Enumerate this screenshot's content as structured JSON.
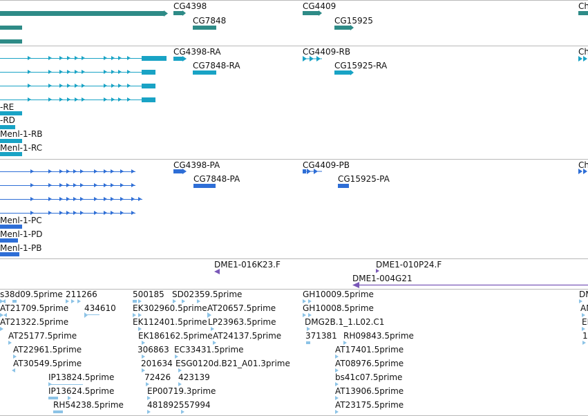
{
  "colors": {
    "gene": "#2e8b87",
    "transcript_ra": "#19a3c5",
    "transcript_pa": "#2e6ed6",
    "bac": "#7a58b8",
    "est": "#8cc3e6",
    "separator": "#b8b8b8"
  },
  "tracks": {
    "genes": [
      {
        "label": "CG4398"
      },
      {
        "label": "CG4409"
      },
      {
        "label": "CG7848"
      },
      {
        "label": "CG15925"
      },
      {
        "label": "Ch"
      }
    ],
    "transcripts": [
      {
        "label": "CG4398-RA"
      },
      {
        "label": "CG4409-RB"
      },
      {
        "label": "CG7848-RA"
      },
      {
        "label": "CG15925-RA"
      },
      {
        "label": "-RE"
      },
      {
        "label": "-RD"
      },
      {
        "label": "Menl-1-RB"
      },
      {
        "label": "Menl-1-RC"
      },
      {
        "label": "Ch"
      }
    ],
    "proteins": [
      {
        "label": "CG4398-PA"
      },
      {
        "label": "CG4409-PB"
      },
      {
        "label": "CG7848-PA"
      },
      {
        "label": "CG15925-PA"
      },
      {
        "label": "Menl-1-PC"
      },
      {
        "label": "Menl-1-PD"
      },
      {
        "label": "Menl-1-PB"
      },
      {
        "label": "Ch"
      }
    ],
    "bacs": [
      {
        "label": "DME1-016K23.F"
      },
      {
        "label": "DME1-010P24.F"
      },
      {
        "label": "DME1-004G21"
      }
    ],
    "ests": [
      {
        "label": "s38d09.5prime"
      },
      {
        "label": "211266"
      },
      {
        "label": "500185"
      },
      {
        "label": "SD02359.5prime"
      },
      {
        "label": "GH10009.5prime"
      },
      {
        "label": "DM"
      },
      {
        "label": "AT21709.5prime"
      },
      {
        "label": "434610"
      },
      {
        "label": "EK302960.5prime"
      },
      {
        "label": "AT20657.5prime"
      },
      {
        "label": "GH10008.5prime"
      },
      {
        "label": "AN"
      },
      {
        "label": "AT21322.5prime"
      },
      {
        "label": "EK112401.5prime"
      },
      {
        "label": "LP23963.5prime"
      },
      {
        "label": "DMG2B.1_1.L02.C1"
      },
      {
        "label": "EI"
      },
      {
        "label": "AT25177.5prime"
      },
      {
        "label": "EK186162.5prime"
      },
      {
        "label": "AT24137.5prime"
      },
      {
        "label": "371381"
      },
      {
        "label": "RH09843.5prime"
      },
      {
        "label": "1"
      },
      {
        "label": "AT22961.5prime"
      },
      {
        "label": "306863"
      },
      {
        "label": "EC33431.5prime"
      },
      {
        "label": "AT17401.5prime"
      },
      {
        "label": "AT30549.5prime"
      },
      {
        "label": "201634"
      },
      {
        "label": "ESG0120d.B21_A01.3prime"
      },
      {
        "label": "AT08976.5prime"
      },
      {
        "label": "IP13824.5prime"
      },
      {
        "label": "72426"
      },
      {
        "label": "423139"
      },
      {
        "label": "bs41c07.5prime"
      },
      {
        "label": "IP13624.5prime"
      },
      {
        "label": "EP00719.3prime"
      },
      {
        "label": "AT13906.5prime"
      },
      {
        "label": "RH54238.5prime"
      },
      {
        "label": "481892557994"
      },
      {
        "label": "AT23175.5prime"
      }
    ]
  }
}
